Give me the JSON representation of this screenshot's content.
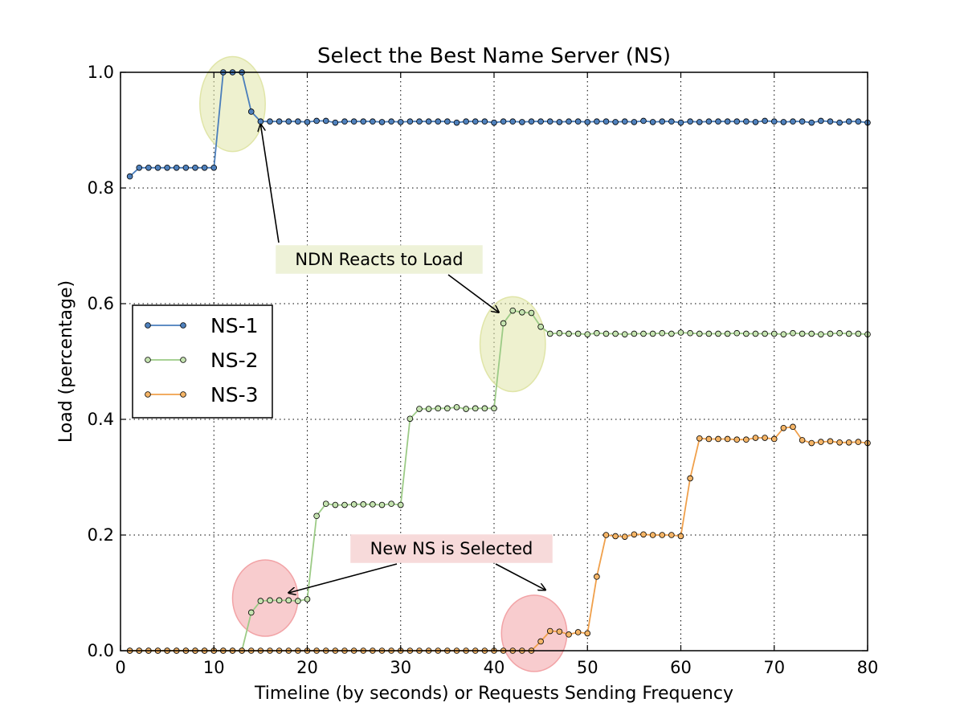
{
  "chart_data": {
    "type": "line",
    "title": "Select the Best Name Server (NS)",
    "xlabel": "Timeline (by seconds) or Requests Sending Frequency",
    "ylabel": "Load (percentage)",
    "xlim": [
      0,
      80
    ],
    "ylim": [
      0.0,
      1.0
    ],
    "xticks": [
      "0",
      "10",
      "20",
      "30",
      "40",
      "50",
      "60",
      "70",
      "80"
    ],
    "yticks": [
      "0.0",
      "0.2",
      "0.4",
      "0.6",
      "0.8",
      "1.0"
    ],
    "grid": true,
    "legend_position": "center-left",
    "series": [
      {
        "name": "NS-1",
        "color": "#4a7ebb",
        "marker_fill": "#4f81bd",
        "x": [
          1,
          2,
          3,
          4,
          5,
          6,
          7,
          8,
          9,
          10,
          11,
          12,
          13,
          14,
          15,
          16,
          17,
          18,
          19,
          20,
          21,
          22,
          23,
          24,
          25,
          26,
          27,
          28,
          29,
          30,
          31,
          32,
          33,
          34,
          35,
          36,
          37,
          38,
          39,
          40,
          41,
          42,
          43,
          44,
          45,
          46,
          47,
          48,
          49,
          50,
          51,
          52,
          53,
          54,
          55,
          56,
          57,
          58,
          59,
          60,
          61,
          62,
          63,
          64,
          65,
          66,
          67,
          68,
          69,
          70,
          71,
          72,
          73,
          74,
          75,
          76,
          77,
          78,
          79,
          80
        ],
        "values": [
          0.82,
          0.835,
          0.835,
          0.835,
          0.835,
          0.835,
          0.835,
          0.835,
          0.835,
          0.835,
          1.0,
          1.0,
          1.0,
          0.932,
          0.915,
          0.915,
          0.915,
          0.915,
          0.915,
          0.914,
          0.916,
          0.916,
          0.913,
          0.915,
          0.915,
          0.915,
          0.915,
          0.914,
          0.915,
          0.914,
          0.915,
          0.915,
          0.915,
          0.915,
          0.915,
          0.913,
          0.915,
          0.915,
          0.915,
          0.913,
          0.915,
          0.915,
          0.914,
          0.915,
          0.915,
          0.915,
          0.914,
          0.915,
          0.915,
          0.914,
          0.915,
          0.915,
          0.914,
          0.915,
          0.914,
          0.916,
          0.914,
          0.915,
          0.915,
          0.913,
          0.915,
          0.914,
          0.915,
          0.915,
          0.915,
          0.915,
          0.915,
          0.914,
          0.916,
          0.915,
          0.914,
          0.915,
          0.915,
          0.913,
          0.916,
          0.915,
          0.913,
          0.915,
          0.915,
          0.913
        ]
      },
      {
        "name": "NS-2",
        "color": "#9ccb86",
        "marker_fill": "#c5e3b0",
        "x": [
          1,
          2,
          3,
          4,
          5,
          6,
          7,
          8,
          9,
          10,
          11,
          12,
          13,
          14,
          15,
          16,
          17,
          18,
          19,
          20,
          21,
          22,
          23,
          24,
          25,
          26,
          27,
          28,
          29,
          30,
          31,
          32,
          33,
          34,
          35,
          36,
          37,
          38,
          39,
          40,
          41,
          42,
          43,
          44,
          45,
          46,
          47,
          48,
          49,
          50,
          51,
          52,
          53,
          54,
          55,
          56,
          57,
          58,
          59,
          60,
          61,
          62,
          63,
          64,
          65,
          66,
          67,
          68,
          69,
          70,
          71,
          72,
          73,
          74,
          75,
          76,
          77,
          78,
          79,
          80
        ],
        "values": [
          0,
          0,
          0,
          0,
          0,
          0,
          0,
          0,
          0,
          0,
          0,
          0,
          0,
          0.066,
          0.086,
          0.087,
          0.087,
          0.087,
          0.086,
          0.089,
          0.233,
          0.254,
          0.252,
          0.252,
          0.253,
          0.253,
          0.253,
          0.252,
          0.254,
          0.252,
          0.401,
          0.418,
          0.418,
          0.419,
          0.419,
          0.421,
          0.418,
          0.419,
          0.419,
          0.419,
          0.566,
          0.588,
          0.585,
          0.584,
          0.56,
          0.548,
          0.549,
          0.548,
          0.548,
          0.547,
          0.549,
          0.548,
          0.548,
          0.547,
          0.548,
          0.548,
          0.548,
          0.549,
          0.548,
          0.55,
          0.549,
          0.548,
          0.548,
          0.548,
          0.548,
          0.549,
          0.548,
          0.548,
          0.548,
          0.548,
          0.547,
          0.549,
          0.548,
          0.548,
          0.547,
          0.548,
          0.549,
          0.548,
          0.548,
          0.547
        ]
      },
      {
        "name": "NS-3",
        "color": "#f0a04b",
        "marker_fill": "#f5b567",
        "x": [
          1,
          2,
          3,
          4,
          5,
          6,
          7,
          8,
          9,
          10,
          11,
          12,
          13,
          14,
          15,
          16,
          17,
          18,
          19,
          20,
          21,
          22,
          23,
          24,
          25,
          26,
          27,
          28,
          29,
          30,
          31,
          32,
          33,
          34,
          35,
          36,
          37,
          38,
          39,
          40,
          41,
          42,
          43,
          44,
          45,
          46,
          47,
          48,
          49,
          50,
          51,
          52,
          53,
          54,
          55,
          56,
          57,
          58,
          59,
          60,
          61,
          62,
          63,
          64,
          65,
          66,
          67,
          68,
          69,
          70,
          71,
          72,
          73,
          74,
          75,
          76,
          77,
          78,
          79,
          80
        ],
        "values": [
          0,
          0,
          0,
          0,
          0,
          0,
          0,
          0,
          0,
          0,
          0,
          0,
          0,
          0,
          0,
          0,
          0,
          0,
          0,
          0,
          0,
          0,
          0,
          0,
          0,
          0,
          0,
          0,
          0,
          0,
          0,
          0,
          0,
          0,
          0,
          0,
          0,
          0,
          0,
          0,
          0,
          0,
          0,
          0,
          0.016,
          0.034,
          0.033,
          0.028,
          0.032,
          0.03,
          0.128,
          0.2,
          0.198,
          0.197,
          0.201,
          0.201,
          0.2,
          0.2,
          0.2,
          0.198,
          0.298,
          0.367,
          0.366,
          0.366,
          0.366,
          0.365,
          0.365,
          0.368,
          0.368,
          0.366,
          0.385,
          0.387,
          0.364,
          0.359,
          0.361,
          0.362,
          0.36,
          0.36,
          0.361,
          0.359
        ]
      }
    ],
    "annotations": [
      {
        "text": "NDN Reacts to Load",
        "box_color": "#eef2d8",
        "arrows_to": [
          [
            15,
            0.91
          ],
          [
            40.5,
            0.585
          ]
        ],
        "highlight_color": "#e0e5a8",
        "highlights": [
          {
            "cx": 12,
            "cy": 0.945,
            "rx": 3.5,
            "ry": 0.082
          },
          {
            "cx": 42,
            "cy": 0.53,
            "rx": 3.5,
            "ry": 0.082
          }
        ]
      },
      {
        "text": "New NS is Selected",
        "box_color": "#f7dada",
        "arrows_to": [
          [
            18,
            0.1
          ],
          [
            45.5,
            0.105
          ]
        ],
        "highlight_color": "#f2a3a6",
        "highlights": [
          {
            "cx": 15.5,
            "cy": 0.091,
            "rx": 3.5,
            "ry": 0.066
          },
          {
            "cx": 44.3,
            "cy": 0.03,
            "rx": 3.5,
            "ry": 0.066
          }
        ]
      }
    ]
  }
}
